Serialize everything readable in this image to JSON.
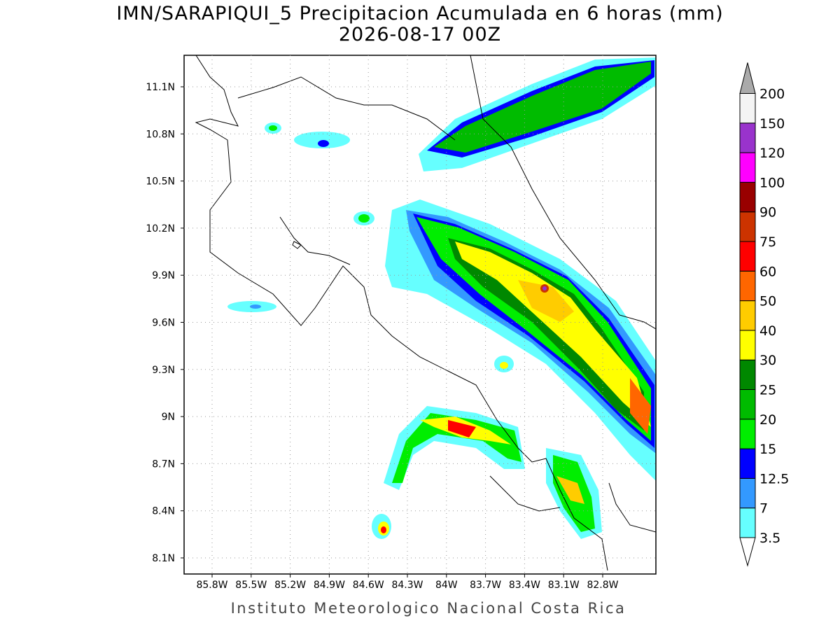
{
  "title": [
    "IMN/SARAPIQUI_5 Precipitacion Acumulada en 6 horas (mm)",
    "2026-08-17 00Z"
  ],
  "map": {
    "lon_labels": [
      "85.8W",
      "85.5W",
      "85.2W",
      "84.9W",
      "84.6W",
      "84.3W",
      "84W",
      "83.7W",
      "83.4W",
      "83.1W",
      "82.8W"
    ],
    "lat_labels": [
      "11.1N",
      "10.8N",
      "10.5N",
      "10.2N",
      "9.9N",
      "9.6N",
      "9.3N",
      "9N",
      "8.7N",
      "8.4N",
      "8.1N"
    ]
  },
  "colorbar": {
    "levels": [
      "3.5",
      "7",
      "12.5",
      "15",
      "20",
      "25",
      "30",
      "40",
      "50",
      "60",
      "75",
      "90",
      "100",
      "120",
      "150",
      "200"
    ],
    "colors": [
      "#ffffff",
      "#66ffff",
      "#3399ff",
      "#0000ff",
      "#00ee00",
      "#00bb00",
      "#008800",
      "#ffff00",
      "#ffcc00",
      "#ff6600",
      "#ff0000",
      "#cc3300",
      "#990000",
      "#ff00ff",
      "#9933cc",
      "#f4f4f4",
      "#aaaaaa"
    ]
  },
  "footer": "Instituto Meteorologico Nacional Costa Rica"
}
